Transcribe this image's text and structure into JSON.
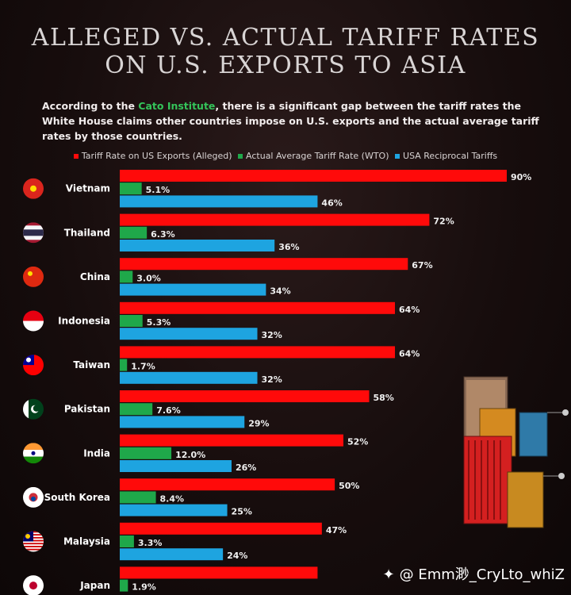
{
  "title": {
    "line1": "Alleged vs. Actual Tariff Rates",
    "line2": "on U.S. Exports to Asia"
  },
  "subtitle": {
    "before": "According to the ",
    "highlight": "Cato Institute",
    "after": ", there is a significant gap between the tariff rates the White House claims other countries impose on U.S. exports and the actual average tariff rates by those countries."
  },
  "colors": {
    "alleged": "#ff0a0a",
    "wto": "#1fa84a",
    "reciprocal": "#1ea4e0"
  },
  "watermark": "@ Emm渺_CryLto_whiZ",
  "chart_data": {
    "type": "bar",
    "orientation": "horizontal",
    "categories": [
      "Vietnam",
      "Thailand",
      "China",
      "Indonesia",
      "Taiwan",
      "Pakistan",
      "India",
      "South Korea",
      "Malaysia",
      "Japan"
    ],
    "series": [
      {
        "name": "Tariff Rate on US Exports (Alleged)",
        "values": [
          90,
          72,
          67,
          64,
          64,
          58,
          52,
          50,
          47,
          46
        ],
        "labels": [
          "90%",
          "72%",
          "67%",
          "64%",
          "64%",
          "58%",
          "52%",
          "50%",
          "47%",
          ""
        ]
      },
      {
        "name": "Actual Average Tariff Rate (WTO)",
        "values": [
          5.1,
          6.3,
          3.0,
          5.3,
          1.7,
          7.6,
          12.0,
          8.4,
          3.3,
          1.9
        ],
        "labels": [
          "5.1%",
          "6.3%",
          "3.0%",
          "5.3%",
          "1.7%",
          "7.6%",
          "12.0%",
          "8.4%",
          "3.3%",
          "1.9%"
        ]
      },
      {
        "name": "USA Reciprocal Tariffs",
        "values": [
          46,
          36,
          34,
          32,
          32,
          29,
          26,
          25,
          24,
          null
        ],
        "labels": [
          "46%",
          "36%",
          "34%",
          "32%",
          "32%",
          "29%",
          "26%",
          "25%",
          "24%",
          ""
        ]
      }
    ],
    "xlim": [
      0,
      90
    ],
    "grid": false,
    "legend": "top"
  }
}
